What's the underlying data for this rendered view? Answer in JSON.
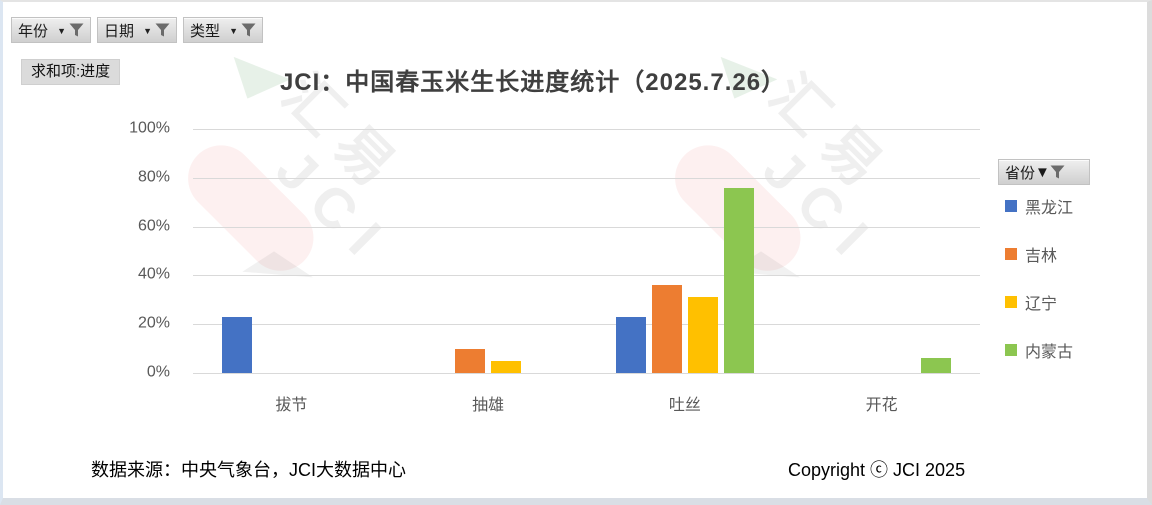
{
  "filters": [
    {
      "key": "year",
      "label": "年份"
    },
    {
      "key": "date",
      "label": "日期"
    },
    {
      "key": "type",
      "label": "类型"
    }
  ],
  "value_field_label": "求和项:进度",
  "chart_data": {
    "type": "bar",
    "title": "JCI：中国春玉米生长进度统计（2025.7.26）",
    "categories": [
      "拔节",
      "抽雄",
      "吐丝",
      "开花"
    ],
    "series": [
      {
        "name": "黑龙江",
        "color": "#4472C4",
        "values": [
          23,
          0,
          23,
          0
        ]
      },
      {
        "name": "吉林",
        "color": "#ED7D31",
        "values": [
          0,
          10,
          36,
          0
        ]
      },
      {
        "name": "辽宁",
        "color": "#FFC000",
        "values": [
          0,
          5,
          31,
          0
        ]
      },
      {
        "name": "内蒙古",
        "color": "#8CC650",
        "values": [
          0,
          0,
          76,
          6
        ]
      }
    ],
    "xlabel": "",
    "ylabel": "",
    "ylim": [
      0,
      100
    ],
    "yticks": [
      "100%",
      "80%",
      "60%",
      "40%",
      "20%",
      "0%"
    ],
    "grid": true,
    "legend_position": "right",
    "unit": "percent"
  },
  "legend": {
    "field_label": "省份",
    "items": [
      {
        "label": "黑龙江",
        "color": "#4472C4"
      },
      {
        "label": "吉林",
        "color": "#ED7D31"
      },
      {
        "label": "辽宁",
        "color": "#FFC000"
      },
      {
        "label": "内蒙古",
        "color": "#8CC650"
      }
    ]
  },
  "footer": {
    "source": "数据来源：中央气象台，JCI大数据中心",
    "copyright": "Copyright ⓒ JCI 2025"
  },
  "watermark": {
    "line1": "汇易",
    "line2": "JCI"
  },
  "icons": {
    "filter": "funnel-icon",
    "dropdown": "chevron-down-icon"
  },
  "colors": {
    "gridline": "#D9D9D9",
    "axis_text": "#595959",
    "title_text": "#3F3F3F"
  }
}
